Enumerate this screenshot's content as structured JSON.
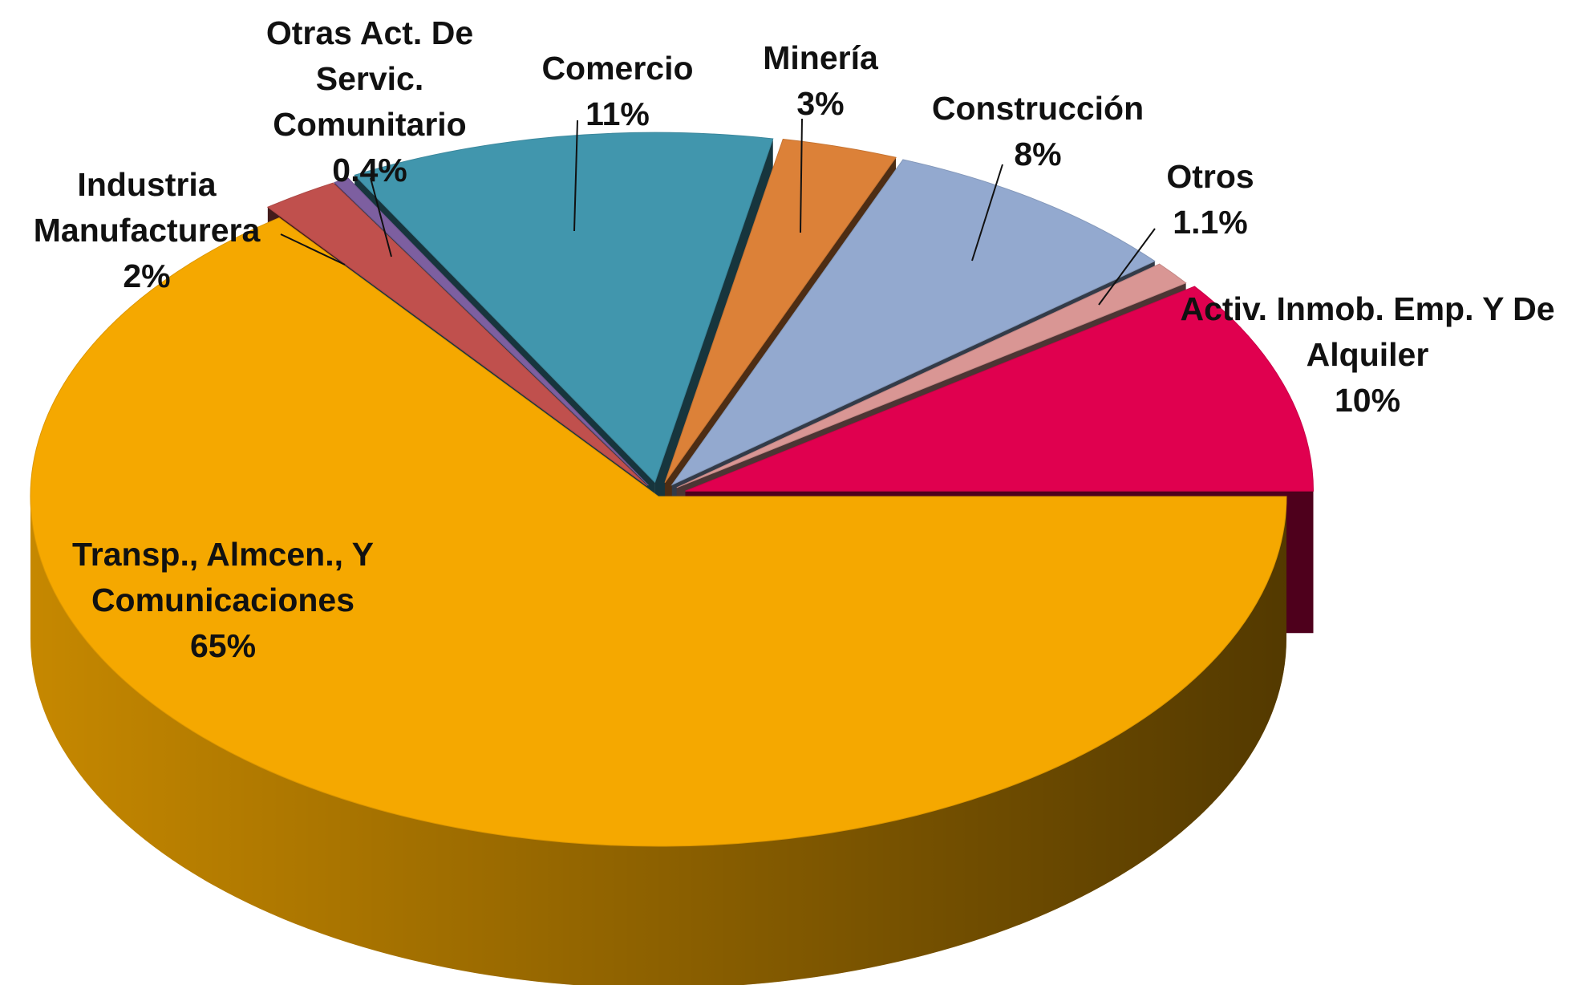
{
  "chart_data": {
    "type": "pie",
    "categories": [
      "Transp., Almcen., Y\nComunicaciones",
      "Industria\nManufacturera",
      "Otras Act. De\nServic.\nComunitario",
      "Comercio",
      "Minería",
      "Construcción",
      "Otros",
      "Activ. Inmob. Emp. Y De\nAlquiler"
    ],
    "values": [
      65,
      2,
      0.4,
      11,
      3,
      8,
      1.1,
      10
    ],
    "value_labels": [
      "65%",
      "2%",
      "0.4%",
      "11%",
      "3%",
      "8%",
      "1.1%",
      "10%"
    ],
    "colors": [
      "#f5a800",
      "#c0504d",
      "#7d5fa0",
      "#4196ad",
      "#dc8138",
      "#93a9cf",
      "#d99694",
      "#e0004f"
    ]
  }
}
